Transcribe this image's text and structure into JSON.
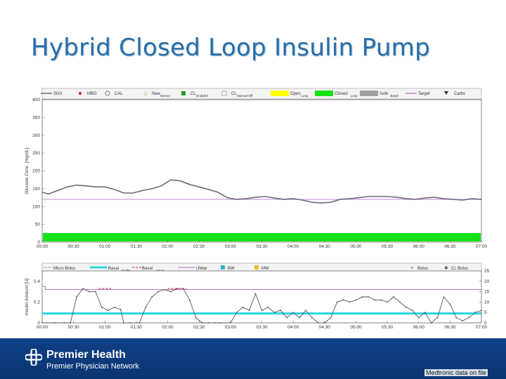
{
  "slide": {
    "title": "Hybrid Closed Loop Insulin Pump",
    "footnote": "Medtronic data on file"
  },
  "brand": {
    "name": "Premier Health",
    "subtitle": "Premier Physician Network",
    "logo": "premier-health-cross-logo-icon",
    "color": "#0f3f86"
  },
  "colors": {
    "sgv": "#6b6b78",
    "target": "#c38ad6",
    "closed_loop": "#16e016",
    "open_loop": "#ffff00",
    "auto_basal": "#a0a0a0",
    "mbg": "#e02020",
    "basal_profile": "#2bd6e0",
    "basal_actual": "#d02020",
    "umax": "#b070c8",
    "bw": "#30b0d0",
    "mw": "#e8c020",
    "micro_bolus": "#555555"
  },
  "chart_data": [
    {
      "type": "line",
      "title": "",
      "ylabel": "Glucose Conc. [mg/dL]",
      "xlabel": "",
      "ylim": [
        0,
        400
      ],
      "yticks": [
        0,
        50,
        100,
        150,
        200,
        250,
        300,
        350,
        400
      ],
      "xticks": [
        "00:00",
        "00:30",
        "01:00",
        "01:30",
        "02:00",
        "02:30",
        "03:00",
        "03:30",
        "04:00",
        "04:30",
        "05:00",
        "05:30",
        "06:00",
        "06:30",
        "07:00"
      ],
      "legend": [
        {
          "label": "SGV",
          "sub": ""
        },
        {
          "label": "MBG",
          "sub": ""
        },
        {
          "label": "CAL",
          "sub": ""
        },
        {
          "label": "New",
          "sub": "Sensor"
        },
        {
          "label": "CL",
          "sub": "Enabled"
        },
        {
          "label": "CL",
          "sub": "Manual Off"
        },
        {
          "label": "Open",
          "sub": "Loop"
        },
        {
          "label": "Closed",
          "sub": "Loop"
        },
        {
          "label": "Safe",
          "sub": "Basal"
        },
        {
          "label": "Target",
          "sub": ""
        },
        {
          "label": "Carbs",
          "sub": ""
        }
      ],
      "series": [
        {
          "name": "SGV",
          "x": [
            0,
            0.1,
            0.25,
            0.4,
            0.55,
            0.7,
            0.85,
            1.0,
            1.15,
            1.3,
            1.45,
            1.6,
            1.75,
            1.9,
            2.05,
            2.2,
            2.35,
            2.5,
            2.65,
            2.8,
            2.95,
            3.1,
            3.25,
            3.4,
            3.55,
            3.7,
            3.85,
            4.0,
            4.15,
            4.3,
            4.45,
            4.6,
            4.75,
            4.9,
            5.05,
            5.2,
            5.35,
            5.5,
            5.65,
            5.8,
            5.95,
            6.1,
            6.25,
            6.4,
            6.55,
            6.7,
            6.85,
            7.0
          ],
          "values": [
            140,
            135,
            145,
            155,
            160,
            158,
            155,
            155,
            148,
            138,
            138,
            145,
            150,
            158,
            175,
            172,
            162,
            155,
            148,
            140,
            125,
            120,
            122,
            126,
            128,
            124,
            120,
            122,
            118,
            112,
            110,
            112,
            120,
            122,
            125,
            128,
            128,
            128,
            126,
            122,
            120,
            124,
            126,
            122,
            120,
            118,
            122,
            120
          ]
        },
        {
          "name": "Target",
          "x": [
            0,
            7
          ],
          "values": [
            120,
            120
          ]
        }
      ],
      "bands": [
        {
          "name": "Closed Loop",
          "from": "00:00",
          "to": "07:00"
        }
      ]
    },
    {
      "type": "line",
      "title": "",
      "ylabel": "Insulin Amount [U]",
      "y2label": "",
      "xlabel": "",
      "ylim": [
        0,
        0.5
      ],
      "yticks": [
        0,
        0.2,
        0.4
      ],
      "y2lim": [
        0,
        25
      ],
      "y2ticks": [
        0,
        5,
        10,
        15,
        20,
        25
      ],
      "xticks": [
        "00:00",
        "00:30",
        "01:00",
        "01:30",
        "02:00",
        "02:30",
        "03:00",
        "03:30",
        "04:00",
        "04:30",
        "05:00",
        "05:30",
        "06:00",
        "06:30",
        "07:00"
      ],
      "legend": [
        {
          "label": "Micro Bolus",
          "sub": ""
        },
        {
          "label": "Basal",
          "sub": "Profile"
        },
        {
          "label": "Basal",
          "sub": "Actual"
        },
        {
          "label": "UMax",
          "sub": ""
        },
        {
          "label": "BW",
          "sub": ""
        },
        {
          "label": "MW",
          "sub": ""
        },
        {
          "label": "Bolus",
          "sub": ""
        },
        {
          "label": "CL Bolus",
          "sub": ""
        }
      ],
      "series": [
        {
          "name": "Micro Bolus",
          "x": [
            0,
            0.2,
            0.35,
            0.45,
            0.55,
            0.65,
            0.75,
            0.85,
            0.95,
            1.05,
            1.15,
            1.25,
            1.3,
            1.4,
            1.55,
            1.65,
            1.75,
            1.85,
            1.95,
            2.05,
            2.15,
            2.25,
            2.35,
            2.45,
            2.55,
            2.65,
            2.75,
            2.85,
            3.0,
            3.1,
            3.2,
            3.3,
            3.4,
            3.5,
            3.6,
            3.7,
            3.8,
            3.9,
            4.0,
            4.1,
            4.2,
            4.3,
            4.4,
            4.5,
            4.6,
            4.7,
            4.8,
            4.9,
            5.0,
            5.1,
            5.2,
            5.3,
            5.4,
            5.5,
            5.6,
            5.7,
            5.8,
            5.9,
            6.0,
            6.1,
            6.2,
            6.3,
            6.4,
            6.5,
            6.6,
            6.7,
            6.8,
            6.9,
            7.0
          ],
          "values": [
            0,
            0,
            0,
            0,
            0.25,
            0.33,
            0.3,
            0.3,
            0.15,
            0.12,
            0.15,
            0.13,
            0,
            0,
            0,
            0.15,
            0.25,
            0.3,
            0.32,
            0.3,
            0.33,
            0.33,
            0.22,
            0.05,
            0,
            0,
            0,
            0,
            0,
            0.1,
            0.15,
            0.12,
            0.28,
            0.12,
            0.15,
            0.1,
            0.12,
            0.05,
            0.1,
            0.05,
            0.12,
            0.05,
            0,
            0,
            0.05,
            0.2,
            0.22,
            0.2,
            0.22,
            0.25,
            0.25,
            0.22,
            0.22,
            0.2,
            0.25,
            0.2,
            0.15,
            0.12,
            0.05,
            0.1,
            0,
            0.05,
            0.25,
            0.18,
            0.05,
            0.02,
            0.05,
            0.1,
            0.12
          ]
        },
        {
          "name": "Basal Profile",
          "x": [
            0,
            7
          ],
          "values": [
            0.09,
            0.09
          ]
        },
        {
          "name": "UMax",
          "x": [
            0,
            0.05,
            0.05,
            7
          ],
          "values": [
            0.35,
            0.35,
            0.32,
            0.32
          ]
        }
      ]
    }
  ]
}
